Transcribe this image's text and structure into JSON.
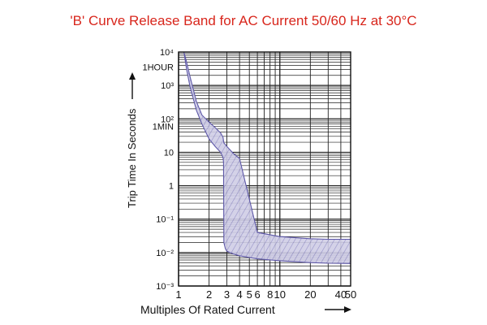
{
  "chart_data": {
    "type": "area",
    "title": "'B' Curve Release Band for AC Current 50/60 Hz at 30°C",
    "xlabel": "Multiples Of Rated Current",
    "ylabel": "Trip Time In Seconds",
    "xscale": "log",
    "yscale": "log",
    "xlim": [
      1,
      50
    ],
    "ylim": [
      0.001,
      10000
    ],
    "grid": true,
    "x_ticks": [
      {
        "value": 1,
        "label": "1"
      },
      {
        "value": 2,
        "label": "2"
      },
      {
        "value": 3,
        "label": "3"
      },
      {
        "value": 4,
        "label": "4"
      },
      {
        "value": 5,
        "label": "5"
      },
      {
        "value": 6,
        "label": "6"
      },
      {
        "value": 8,
        "label": "8"
      },
      {
        "value": 10,
        "label": "10"
      },
      {
        "value": 20,
        "label": "20"
      },
      {
        "value": 40,
        "label": "40"
      },
      {
        "value": 50,
        "label": "50"
      }
    ],
    "y_ticks": [
      {
        "value": 10000,
        "label": "10⁴"
      },
      {
        "value": 3600,
        "label": "1HOUR"
      },
      {
        "value": 1000,
        "label": "10³"
      },
      {
        "value": 100,
        "label": "10²"
      },
      {
        "value": 60,
        "label": "1MIN"
      },
      {
        "value": 10,
        "label": "10"
      },
      {
        "value": 1,
        "label": "1"
      },
      {
        "value": 0.1,
        "label": "10⁻¹"
      },
      {
        "value": 0.01,
        "label": "10⁻²"
      },
      {
        "value": 0.001,
        "label": "10⁻³"
      }
    ],
    "series": [
      {
        "name": "",
        "x": [
          1.13,
          1.2,
          1.3,
          1.5,
          1.7,
          2.0,
          2.3,
          2.6,
          2.75,
          2.78,
          2.8,
          2.9,
          3.0,
          3.5,
          4.0,
          6.0,
          10.0,
          20.0,
          30.0,
          50.0
        ],
        "upper": [
          10000,
          5000,
          1800,
          330,
          130,
          80,
          55,
          38,
          28,
          22,
          19,
          17,
          15,
          9,
          6.5,
          0.04,
          0.03,
          0.026,
          0.025,
          0.025
        ],
        "lower": [
          10000,
          3000,
          900,
          180,
          70,
          25,
          15,
          10,
          7,
          5,
          0.02,
          0.013,
          0.011,
          0.009,
          0.008,
          0.0065,
          0.0057,
          0.005,
          0.0048,
          0.0047
        ]
      }
    ]
  }
}
